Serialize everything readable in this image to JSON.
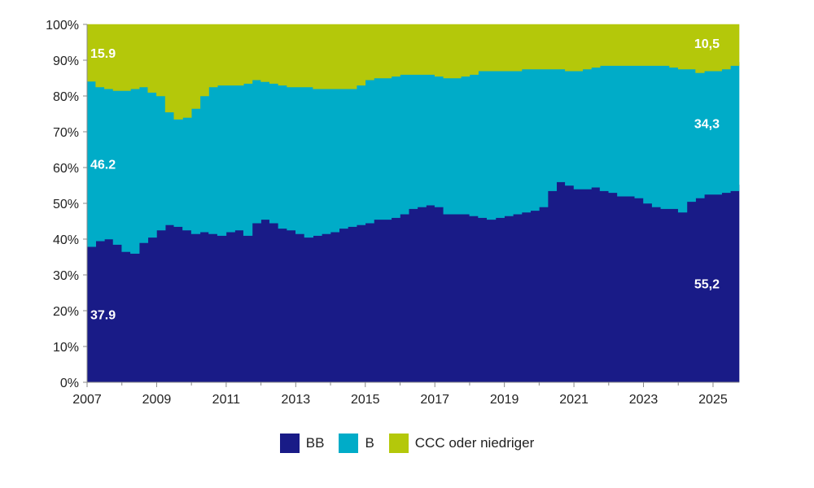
{
  "chart_data": {
    "type": "area",
    "stacked": true,
    "x_ticks": [
      "2007",
      "2009",
      "2011",
      "2013",
      "2015",
      "2017",
      "2019",
      "2021",
      "2023",
      "2025"
    ],
    "y_ticks": [
      "0%",
      "10%",
      "20%",
      "30%",
      "40%",
      "50%",
      "60%",
      "70%",
      "80%",
      "90%",
      "100%"
    ],
    "xlim": [
      2007.0,
      2025.75
    ],
    "ylim": [
      0,
      100
    ],
    "x": [
      2007.0,
      2007.25,
      2007.5,
      2007.75,
      2008.0,
      2008.25,
      2008.5,
      2008.75,
      2009.0,
      2009.25,
      2009.5,
      2009.75,
      2010.0,
      2010.25,
      2010.5,
      2010.75,
      2011.0,
      2011.25,
      2011.5,
      2011.75,
      2012.0,
      2012.25,
      2012.5,
      2012.75,
      2013.0,
      2013.25,
      2013.5,
      2013.75,
      2014.0,
      2014.25,
      2014.5,
      2014.75,
      2015.0,
      2015.25,
      2015.5,
      2015.75,
      2016.0,
      2016.25,
      2016.5,
      2016.75,
      2017.0,
      2017.25,
      2017.5,
      2017.75,
      2018.0,
      2018.25,
      2018.5,
      2018.75,
      2019.0,
      2019.25,
      2019.5,
      2019.75,
      2020.0,
      2020.25,
      2020.5,
      2020.75,
      2021.0,
      2021.25,
      2021.5,
      2021.75,
      2022.0,
      2022.25,
      2022.5,
      2022.75,
      2023.0,
      2023.25,
      2023.5,
      2023.75,
      2024.0,
      2024.25,
      2024.5,
      2024.75,
      2025.0,
      2025.25,
      2025.5,
      2025.75
    ],
    "series": [
      {
        "name": "BB",
        "color": "#191b87",
        "values": [
          37.9,
          39.5,
          40.0,
          38.5,
          36.5,
          36.0,
          39.0,
          40.5,
          42.5,
          44.0,
          43.5,
          42.5,
          41.5,
          42.0,
          41.5,
          41.0,
          42.0,
          42.5,
          41.0,
          44.5,
          45.5,
          44.5,
          43.0,
          42.5,
          41.5,
          40.5,
          41.0,
          41.5,
          42.0,
          43.0,
          43.5,
          44.0,
          44.5,
          45.5,
          45.5,
          46.0,
          47.0,
          48.5,
          49.0,
          49.5,
          49.0,
          47.0,
          47.0,
          47.0,
          46.5,
          46.0,
          45.5,
          46.0,
          46.5,
          47.0,
          47.5,
          48.0,
          49.0,
          53.5,
          56.0,
          55.0,
          54.0,
          54.0,
          54.5,
          53.5,
          53.0,
          52.0,
          52.0,
          51.5,
          50.0,
          49.0,
          48.5,
          48.5,
          47.5,
          50.5,
          51.5,
          52.5,
          52.5,
          53.0,
          53.5,
          55.2
        ]
      },
      {
        "name": "B",
        "color": "#00acc8",
        "values": [
          46.2,
          43.0,
          42.0,
          43.0,
          45.0,
          46.0,
          43.5,
          40.5,
          37.5,
          31.5,
          30.0,
          31.5,
          35.0,
          38.0,
          41.0,
          42.0,
          41.0,
          40.5,
          42.5,
          40.0,
          38.5,
          39.0,
          40.0,
          40.0,
          41.0,
          42.0,
          41.0,
          40.5,
          40.0,
          39.0,
          38.5,
          39.0,
          40.0,
          39.5,
          39.5,
          39.5,
          39.0,
          37.5,
          37.0,
          36.5,
          36.5,
          38.0,
          38.0,
          38.5,
          39.5,
          41.0,
          41.5,
          41.0,
          40.5,
          40.0,
          40.0,
          39.5,
          38.5,
          34.0,
          31.5,
          32.0,
          33.0,
          33.5,
          33.5,
          35.0,
          35.5,
          36.5,
          36.5,
          37.0,
          38.5,
          39.5,
          40.0,
          39.5,
          40.0,
          37.0,
          35.0,
          34.5,
          34.5,
          34.5,
          35.0,
          34.3
        ]
      },
      {
        "name": "CCC oder niedriger",
        "color": "#b4c80a",
        "values": [
          15.9,
          17.5,
          18.0,
          18.5,
          18.5,
          18.0,
          17.5,
          19.0,
          20.0,
          24.5,
          26.5,
          26.0,
          23.5,
          20.0,
          17.5,
          17.0,
          17.0,
          17.0,
          16.5,
          15.5,
          16.0,
          16.5,
          17.0,
          17.5,
          17.5,
          17.5,
          18.0,
          18.0,
          18.0,
          18.0,
          18.0,
          17.0,
          15.5,
          15.0,
          15.0,
          14.5,
          14.0,
          14.0,
          14.0,
          14.0,
          14.5,
          15.0,
          15.0,
          14.5,
          14.0,
          13.0,
          13.0,
          13.0,
          13.0,
          13.0,
          12.5,
          12.5,
          12.5,
          12.5,
          12.5,
          13.0,
          13.0,
          12.5,
          12.0,
          11.5,
          11.5,
          11.5,
          11.5,
          11.5,
          11.5,
          11.5,
          11.5,
          12.0,
          12.5,
          12.5,
          13.5,
          13.0,
          13.0,
          12.5,
          11.5,
          10.5
        ]
      }
    ],
    "data_labels": [
      {
        "series": "BB",
        "start": "37.9",
        "end": "55,2"
      },
      {
        "series": "B",
        "start": "46.2",
        "end": "34,3"
      },
      {
        "series": "CCC oder niedriger",
        "start": "15.9",
        "end": "10,5"
      }
    ],
    "legend": {
      "position": "bottom",
      "entries": [
        "BB",
        "B",
        "CCC oder niedriger"
      ]
    },
    "grid": false
  }
}
